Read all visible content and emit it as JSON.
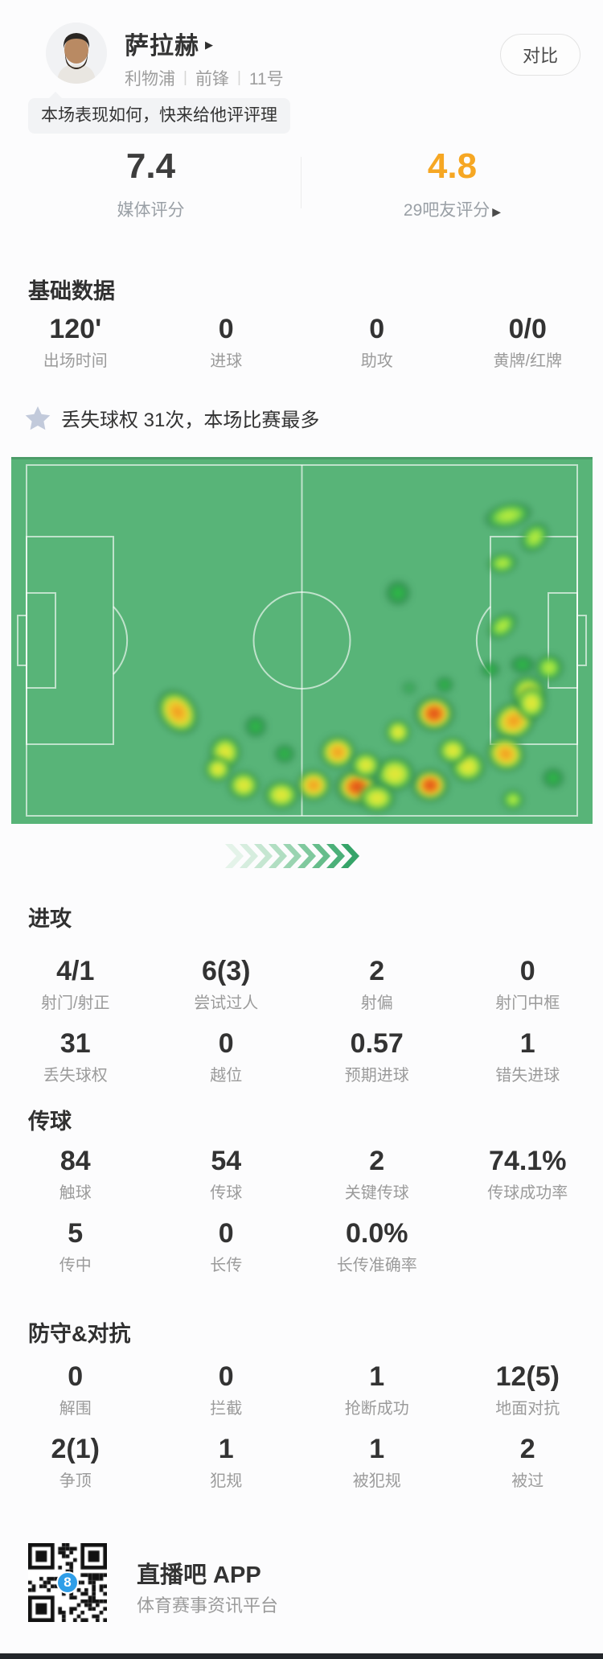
{
  "header": {
    "player_name": "萨拉赫",
    "player_arrow": "▶",
    "team": "利物浦",
    "position": "前锋",
    "number": "11号",
    "separator": "|",
    "compare_label": "对比",
    "bubble_text": "本场表现如何，快来给他评评理"
  },
  "ratings": {
    "media": {
      "value": "7.4",
      "label": "媒体评分"
    },
    "fans": {
      "value": "4.8",
      "label": "29吧友评分",
      "arrow": "▶"
    },
    "accent_color": "#f6a723"
  },
  "highlight": {
    "text": "丢失球权 31次，本场比赛最多"
  },
  "stat_sections": {
    "basic": {
      "title": "基础数据",
      "rows": [
        [
          [
            "120'",
            "出场时间"
          ],
          [
            "0",
            "进球"
          ],
          [
            "0",
            "助攻"
          ],
          [
            "0/0",
            "黄牌/红牌"
          ]
        ]
      ]
    },
    "attack": {
      "title": "进攻",
      "rows": [
        [
          [
            "4/1",
            "射门/射正"
          ],
          [
            "6(3)",
            "尝试过人"
          ],
          [
            "2",
            "射偏"
          ],
          [
            "0",
            "射门中框"
          ]
        ],
        [
          [
            "31",
            "丢失球权"
          ],
          [
            "0",
            "越位"
          ],
          [
            "0.57",
            "预期进球"
          ],
          [
            "1",
            "错失进球"
          ]
        ]
      ]
    },
    "passing": {
      "title": "传球",
      "rows": [
        [
          [
            "84",
            "触球"
          ],
          [
            "54",
            "传球"
          ],
          [
            "2",
            "关键传球"
          ],
          [
            "74.1%",
            "传球成功率"
          ]
        ],
        [
          [
            "5",
            "传中"
          ],
          [
            "0",
            "长传"
          ],
          [
            "0.0%",
            "长传准确率"
          ]
        ]
      ]
    },
    "defense": {
      "title": "防守&对抗",
      "rows": [
        [
          [
            "0",
            "解围"
          ],
          [
            "0",
            "拦截"
          ],
          [
            "1",
            "抢断成功"
          ],
          [
            "12(5)",
            "地面对抗"
          ]
        ],
        [
          [
            "2(1)",
            "争顶"
          ],
          [
            "1",
            "犯规"
          ],
          [
            "1",
            "被犯规"
          ],
          [
            "2",
            "被过"
          ]
        ]
      ]
    }
  },
  "heatmap": {
    "pitch_color": "#58b478",
    "line_color": "rgba(255,255,255,0.62)",
    "heat_palette": {
      "red": "#dc3b20",
      "orange": "#f08a1c",
      "yellow": "#efe637",
      "lime": "#c6f23c",
      "green": "#2fc446"
    },
    "blobs": [
      [
        85.5,
        16,
        64,
        34,
        -12,
        "lime"
      ],
      [
        90,
        22,
        44,
        34,
        -50,
        "lime"
      ],
      [
        84.5,
        29,
        40,
        28,
        -8,
        "lime"
      ],
      [
        66.5,
        37,
        34,
        34,
        0,
        "green"
      ],
      [
        84.5,
        46,
        44,
        30,
        -38,
        "lime"
      ],
      [
        82.5,
        58,
        26,
        22,
        0,
        "green"
      ],
      [
        88,
        56.5,
        34,
        26,
        0,
        "green"
      ],
      [
        93,
        57,
        22,
        18,
        0,
        "faint"
      ],
      [
        68.5,
        63,
        22,
        20,
        0,
        "faint"
      ],
      [
        74.5,
        62,
        24,
        22,
        0,
        "green"
      ],
      [
        28.6,
        69.5,
        50,
        64,
        -38,
        "orange"
      ],
      [
        36.8,
        80.5,
        42,
        44,
        0,
        "yellow"
      ],
      [
        42,
        73.5,
        30,
        30,
        0,
        "green"
      ],
      [
        47,
        81,
        28,
        26,
        0,
        "green"
      ],
      [
        72.8,
        70,
        54,
        48,
        0,
        "red"
      ],
      [
        66.5,
        75,
        34,
        34,
        0,
        "yellow"
      ],
      [
        86.5,
        72,
        58,
        50,
        -25,
        "orange"
      ],
      [
        85,
        81,
        52,
        46,
        20,
        "orange"
      ],
      [
        89,
        64,
        46,
        44,
        0,
        "yellow"
      ],
      [
        92.5,
        57.5,
        38,
        36,
        0,
        "lime"
      ],
      [
        89.5,
        67,
        40,
        44,
        0,
        "yellow"
      ],
      [
        56.2,
        80.5,
        48,
        44,
        0,
        "orange"
      ],
      [
        59.5,
        90,
        58,
        48,
        0,
        "red"
      ],
      [
        52,
        89.5,
        46,
        42,
        0,
        "orange"
      ],
      [
        46.5,
        92,
        46,
        38,
        0,
        "yellow"
      ],
      [
        40,
        89.5,
        42,
        38,
        0,
        "yellow"
      ],
      [
        35.5,
        85,
        36,
        34,
        0,
        "yellow"
      ],
      [
        72,
        89.5,
        50,
        44,
        0,
        "red"
      ],
      [
        66,
        86.5,
        52,
        46,
        0,
        "yellow"
      ],
      [
        78.5,
        84.5,
        46,
        42,
        0,
        "yellow"
      ],
      [
        76,
        80,
        40,
        36,
        0,
        "yellow"
      ],
      [
        61,
        84,
        40,
        36,
        0,
        "yellow"
      ],
      [
        63,
        93,
        48,
        38,
        0,
        "yellow"
      ],
      [
        86.3,
        93.5,
        30,
        28,
        0,
        "lime"
      ],
      [
        93.2,
        87.5,
        30,
        28,
        0,
        "green"
      ]
    ]
  },
  "chevrons": {
    "colors": [
      "#e4f3e9",
      "#d6edde",
      "#c5e6d1",
      "#b1dec2",
      "#9ad4b1",
      "#80c99e",
      "#66bd8b",
      "#4cb079",
      "#36a469"
    ]
  },
  "footer": {
    "app_name": "直播吧 APP",
    "tagline": "体育赛事资讯平台",
    "badge": "8",
    "badge_color": "#2f9ee8"
  },
  "colors": {
    "star_icon": "#c2cadb",
    "rating_accent": "#f6a723",
    "label_gray": "#9b9b9b",
    "text_dark": "#333333"
  }
}
